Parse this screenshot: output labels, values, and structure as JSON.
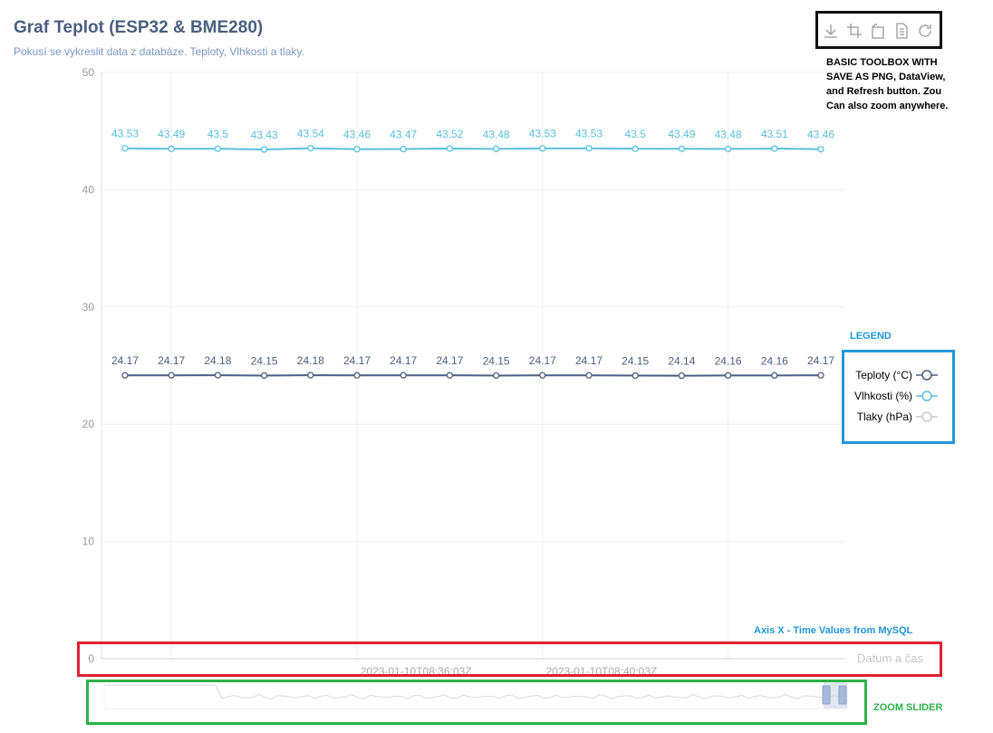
{
  "header": {
    "title": "Graf Teplot (ESP32 & BME280)",
    "subtitle": "Pokusí se vykreslit data z databáze. Teploty, Vlhkosti a tlaky."
  },
  "toolbox": {
    "tools": [
      "download-icon",
      "zoom-icon",
      "zoom-reset-icon",
      "data-view-icon",
      "refresh-icon"
    ],
    "note": "BASIC TOOLBOX WITH SAVE AS PNG, DataView, and Refresh button. Zou Can also zoom anywhere."
  },
  "annotations": {
    "legend_note": "LEGEND",
    "axis_note": "Axis X - Time Values from MySQL",
    "zoom_note": "ZOOM SLIDER"
  },
  "legend": {
    "items": [
      {
        "label": "Teploty (°C)",
        "color": "#4a5f7f",
        "active": true
      },
      {
        "label": "Vlhkosti (%)",
        "color": "#5bc0de",
        "active": true
      },
      {
        "label": "Tlaky (hPa)",
        "color": "#cccccc",
        "active": false
      }
    ]
  },
  "chart_data": {
    "type": "line",
    "title": "Graf Teplot (ESP32 & BME280)",
    "xlabel": "Datum a čas",
    "ylabel": "",
    "ylim": [
      0,
      50
    ],
    "yticks": [
      0,
      10,
      20,
      30,
      40,
      50
    ],
    "x_tick_labels": [
      "2023-01-10T08:36:03Z",
      "2023-01-10T08:40:03Z"
    ],
    "x_tick_label_indices": [
      6,
      10
    ],
    "series": [
      {
        "name": "Teploty (°C)",
        "color": "#4a5f7f",
        "values": [
          24.17,
          24.17,
          24.18,
          24.15,
          24.18,
          24.17,
          24.17,
          24.17,
          24.15,
          24.17,
          24.17,
          24.15,
          24.14,
          24.16,
          24.16,
          24.17
        ]
      },
      {
        "name": "Vlhkosti (%)",
        "color": "#5bc0de",
        "values": [
          43.53,
          43.49,
          43.5,
          43.43,
          43.54,
          43.46,
          43.47,
          43.52,
          43.48,
          43.53,
          43.53,
          43.5,
          43.49,
          43.48,
          43.51,
          43.46
        ]
      }
    ],
    "zoom_slider": {
      "start": 0,
      "end": 100
    }
  }
}
